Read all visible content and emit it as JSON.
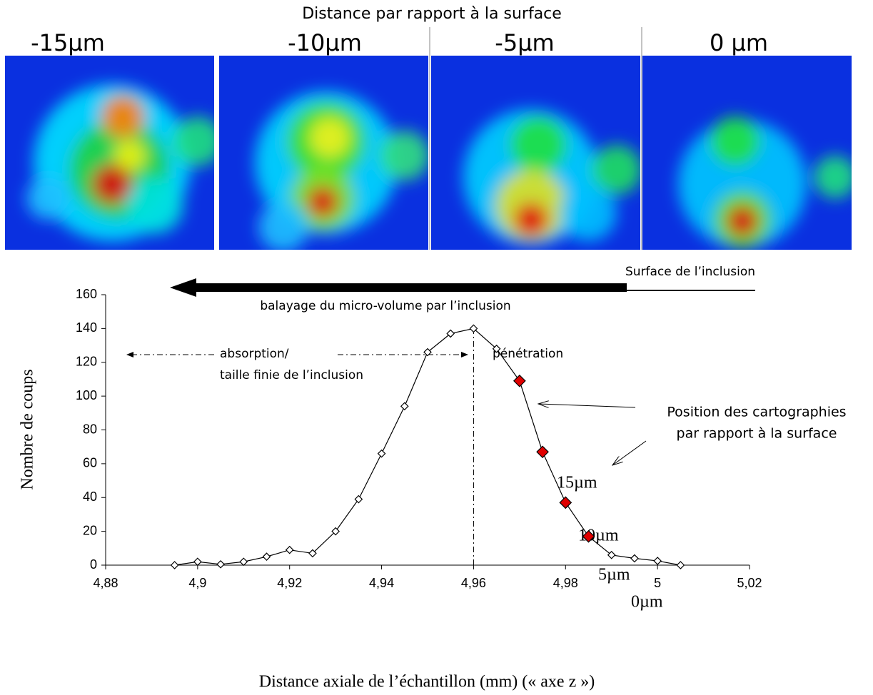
{
  "chart_data": {
    "type": "line",
    "title": "Distance par rapport à la surface",
    "panel_labels": [
      "-15µm",
      "-10µm",
      "-5µm",
      "0 µm"
    ],
    "x_label": "Distance axiale de l’échantillon (mm) (« axe z »)",
    "y_label": "Nombre de coups",
    "x": [
      4.895,
      4.9,
      4.905,
      4.91,
      4.915,
      4.92,
      4.925,
      4.93,
      4.935,
      4.94,
      4.945,
      4.95,
      4.955,
      4.96,
      4.965,
      4.97,
      4.975,
      4.98,
      4.985,
      4.99,
      4.995,
      5.0,
      5.005
    ],
    "series": [
      {
        "color": "#000000",
        "values": [
          0,
          2,
          0.5,
          2,
          5,
          9,
          7,
          20,
          39,
          66,
          94,
          126,
          137,
          140,
          128,
          109,
          67,
          37,
          17,
          6,
          4,
          2.5,
          0
        ],
        "marker_fills": [
          "#ffffff",
          "#ffffff",
          "#ffffff",
          "#ffffff",
          "#ffffff",
          "#ffffff",
          "#ffffff",
          "#ffffff",
          "#ffffff",
          "#ffffff",
          "#ffffff",
          "#ffffff",
          "#ffffff",
          "#ffffff",
          "#ffffff",
          "#e00000",
          "#e00000",
          "#e00000",
          "#e00000",
          "#ffffff",
          "#ffffff",
          "#ffffff",
          "#ffffff"
        ]
      }
    ],
    "xlim": [
      4.88,
      5.02
    ],
    "ylim": [
      0,
      160
    ],
    "xticks": [
      {
        "value": 4.88,
        "label": "4,88"
      },
      {
        "value": 4.9,
        "label": "4,9"
      },
      {
        "value": 4.92,
        "label": "4,92"
      },
      {
        "value": 4.94,
        "label": "4,94"
      },
      {
        "value": 4.96,
        "label": "4,96"
      },
      {
        "value": 4.98,
        "label": "4,98"
      },
      5,
      {
        "value": 5.02,
        "label": "5,02"
      }
    ],
    "yticks": [
      0,
      20,
      40,
      60,
      80,
      100,
      120,
      140,
      160
    ],
    "grid": false,
    "annotations": {
      "surface": "Surface de l’inclusion",
      "scan": "balayage du micro-volume par l’inclusion",
      "absorption_1": "absorption/",
      "absorption_2": "taille finie de l’inclusion",
      "penetration": "pénétration",
      "position_1": "Position des cartographies",
      "position_2": "par rapport à la surface",
      "p15": "15µm",
      "p10": "10µm",
      "p5": "5µm",
      "p0": "0µm"
    }
  }
}
